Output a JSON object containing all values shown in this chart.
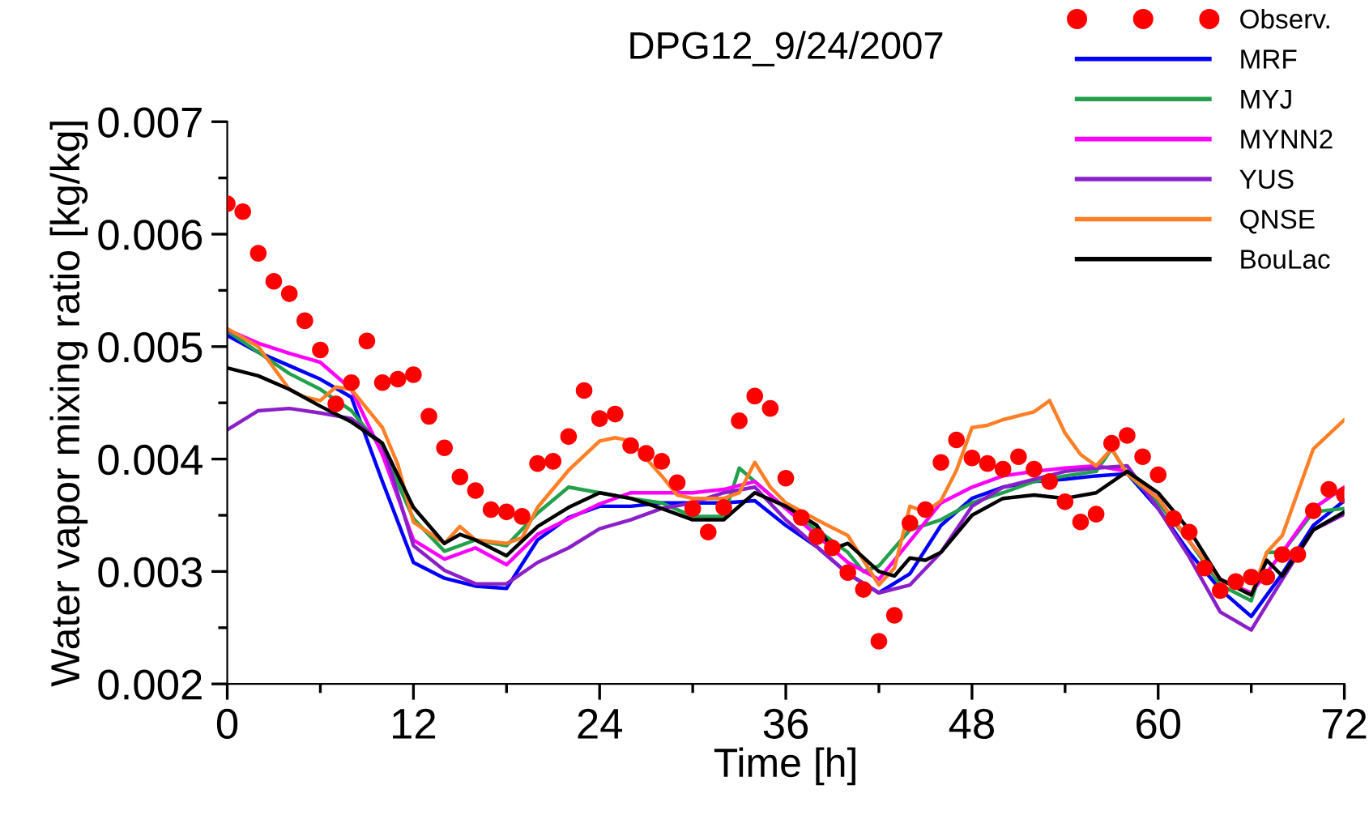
{
  "chart_data": {
    "type": "line",
    "title": "DPG12_9/24/2007",
    "xlabel": "Time [h]",
    "ylabel": "Water vapor mixing ratio [kg/kg]",
    "xlim": [
      0,
      72
    ],
    "ylim": [
      0.002,
      0.007
    ],
    "xticks": [
      0,
      {
        "value": 6,
        "label": null
      },
      12,
      {
        "value": 18,
        "label": null
      },
      24,
      {
        "value": 30,
        "label": null
      },
      36,
      {
        "value": 42,
        "label": null
      },
      48,
      {
        "value": 54,
        "label": null
      },
      60,
      {
        "value": 66,
        "label": null
      },
      72
    ],
    "yticks": [
      0.002,
      {
        "value": 0.0025,
        "label": null
      },
      0.003,
      {
        "value": 0.0035,
        "label": null
      },
      0.004,
      {
        "value": 0.0045,
        "label": null
      },
      0.005,
      {
        "value": 0.0055,
        "label": null
      },
      0.006,
      {
        "value": 0.0065,
        "label": null
      },
      0.007
    ],
    "grid": false,
    "legend": "top right",
    "line_style": "solid",
    "series": [
      {
        "name": "Observ.",
        "type": "scatter",
        "marker": "circle",
        "color": "#ff0000",
        "x": [
          0,
          1,
          2,
          3,
          4,
          5,
          6,
          7,
          8,
          9,
          10,
          11,
          12,
          13,
          14,
          15,
          16,
          17,
          18,
          19,
          20,
          21,
          22,
          23,
          24,
          25,
          26,
          27,
          28,
          29,
          30,
          31,
          32,
          33,
          34,
          35,
          36,
          37,
          38,
          39,
          40,
          41,
          42,
          43,
          44,
          45,
          46,
          47,
          48,
          49,
          50,
          51,
          52,
          53,
          54,
          55,
          56,
          57,
          58,
          59,
          60,
          61,
          62,
          63,
          64,
          65,
          66,
          67,
          68,
          69,
          70,
          71,
          72
        ],
        "values": [
          0.00627,
          0.0062,
          0.00583,
          0.00558,
          0.00547,
          0.00523,
          0.00497,
          0.00449,
          0.00468,
          0.00505,
          0.00468,
          0.00471,
          0.00475,
          0.00438,
          0.0041,
          0.00384,
          0.00372,
          0.00355,
          0.00353,
          0.00349,
          0.00396,
          0.00398,
          0.0042,
          0.00461,
          0.00436,
          0.0044,
          0.00412,
          0.00405,
          0.00398,
          0.00379,
          0.00356,
          0.00335,
          0.00357,
          0.00434,
          0.00456,
          0.00445,
          0.00383,
          0.00348,
          0.00331,
          0.00321,
          0.00299,
          0.00284,
          0.00238,
          0.00261,
          0.00343,
          0.00355,
          0.00397,
          0.00417,
          0.00401,
          0.00396,
          0.00391,
          0.00402,
          0.00391,
          0.0038,
          0.00362,
          0.00344,
          0.00351,
          0.00414,
          0.00421,
          0.00402,
          0.00386,
          0.00347,
          0.00335,
          0.00303,
          0.00283,
          0.00291,
          0.00295,
          0.00295,
          0.00315,
          0.00315,
          0.00354,
          0.00373,
          0.00368
        ]
      },
      {
        "name": "MRF",
        "color": "#0000ff",
        "x": [
          0,
          2,
          4,
          6,
          8,
          10,
          12,
          14,
          16,
          18,
          20,
          22,
          24,
          26,
          28,
          30,
          32,
          34,
          36,
          38,
          40,
          42,
          44,
          46,
          48,
          50,
          52,
          54,
          56,
          58,
          60,
          62,
          64,
          66,
          68,
          70,
          72
        ],
        "values": [
          0.0051,
          0.00495,
          0.00483,
          0.00471,
          0.00455,
          0.0038,
          0.00308,
          0.00294,
          0.00287,
          0.00285,
          0.00328,
          0.00348,
          0.00358,
          0.00358,
          0.00361,
          0.00361,
          0.00361,
          0.00363,
          0.00341,
          0.00322,
          0.00298,
          0.00281,
          0.00298,
          0.00341,
          0.00365,
          0.00375,
          0.0038,
          0.00382,
          0.00385,
          0.00387,
          0.00356,
          0.00317,
          0.00284,
          0.0026,
          0.00298,
          0.00341,
          0.00363
        ]
      },
      {
        "name": "MYJ",
        "color": "#22a04b",
        "x": [
          0,
          2,
          4,
          6,
          8,
          10,
          12,
          14,
          16,
          18,
          20,
          22,
          24,
          26,
          28,
          30,
          32,
          33,
          34,
          36,
          38,
          40,
          41,
          42,
          44,
          46,
          48,
          50,
          52,
          54,
          56,
          57,
          58,
          60,
          62,
          64,
          66,
          67,
          68,
          70,
          72
        ],
        "values": [
          0.00514,
          0.00495,
          0.00476,
          0.00462,
          0.00443,
          0.00409,
          0.00347,
          0.00318,
          0.00328,
          0.00323,
          0.00352,
          0.00375,
          0.0037,
          0.00365,
          0.00361,
          0.00349,
          0.00349,
          0.00392,
          0.0038,
          0.00356,
          0.00337,
          0.00317,
          0.003,
          0.00305,
          0.00337,
          0.00346,
          0.00361,
          0.0037,
          0.0038,
          0.00385,
          0.00389,
          0.00409,
          0.00387,
          0.00361,
          0.00327,
          0.00288,
          0.00274,
          0.00317,
          0.00317,
          0.00353,
          0.00356
        ]
      },
      {
        "name": "MYNN2",
        "color": "#ff00ff",
        "x": [
          0,
          2,
          4,
          6,
          8,
          10,
          12,
          14,
          16,
          18,
          20,
          22,
          24,
          26,
          28,
          30,
          32,
          34,
          36,
          38,
          40,
          42,
          44,
          46,
          48,
          50,
          52,
          54,
          56,
          58,
          60,
          62,
          64,
          66,
          68,
          70,
          72
        ],
        "values": [
          0.00515,
          0.00503,
          0.00494,
          0.00486,
          0.00462,
          0.00404,
          0.00328,
          0.00311,
          0.00321,
          0.00306,
          0.00333,
          0.00347,
          0.0036,
          0.0037,
          0.0037,
          0.0037,
          0.00373,
          0.0038,
          0.00356,
          0.00332,
          0.00308,
          0.00293,
          0.00327,
          0.00361,
          0.00375,
          0.00385,
          0.00389,
          0.00392,
          0.00394,
          0.00389,
          0.00365,
          0.00327,
          0.00293,
          0.00281,
          0.00317,
          0.00356,
          0.00375
        ]
      },
      {
        "name": "YUS",
        "color": "#8b1fc8",
        "x": [
          0,
          2,
          4,
          6,
          8,
          10,
          12,
          14,
          16,
          18,
          20,
          22,
          24,
          26,
          28,
          30,
          32,
          34,
          36,
          38,
          40,
          42,
          44,
          46,
          48,
          50,
          52,
          54,
          56,
          58,
          60,
          62,
          64,
          66,
          68,
          70,
          72
        ],
        "values": [
          0.00426,
          0.00443,
          0.00445,
          0.00441,
          0.00436,
          0.00414,
          0.00323,
          0.00301,
          0.00289,
          0.00289,
          0.00308,
          0.00321,
          0.00338,
          0.00346,
          0.00356,
          0.00361,
          0.0037,
          0.00375,
          0.00346,
          0.00322,
          0.00298,
          0.00281,
          0.00288,
          0.00317,
          0.00358,
          0.00375,
          0.00382,
          0.00389,
          0.00392,
          0.00394,
          0.00356,
          0.00313,
          0.00264,
          0.00248,
          0.00293,
          0.00337,
          0.00351
        ]
      },
      {
        "name": "QNSE",
        "color": "#ff7f27",
        "x": [
          0,
          2,
          4,
          5,
          6,
          7,
          8,
          10,
          11,
          12,
          14,
          15,
          16,
          18,
          19,
          20,
          22,
          24,
          25,
          26,
          28,
          29,
          30,
          32,
          33,
          34,
          35,
          36,
          38,
          40,
          42,
          43,
          44,
          45,
          46,
          47,
          48,
          49,
          50,
          52,
          53,
          54,
          55,
          56,
          57,
          58,
          60,
          62,
          64,
          66,
          67,
          68,
          70,
          72
        ],
        "values": [
          0.00516,
          0.005,
          0.00462,
          0.00455,
          0.00452,
          0.00464,
          0.00462,
          0.00428,
          0.00395,
          0.00344,
          0.00325,
          0.0034,
          0.00328,
          0.00325,
          0.0033,
          0.00357,
          0.0039,
          0.00416,
          0.00419,
          0.00416,
          0.00385,
          0.00368,
          0.00365,
          0.00365,
          0.0037,
          0.00397,
          0.00375,
          0.00361,
          0.00346,
          0.00332,
          0.00288,
          0.00303,
          0.00358,
          0.00353,
          0.00363,
          0.0039,
          0.00428,
          0.0043,
          0.00435,
          0.00442,
          0.00452,
          0.00423,
          0.00404,
          0.00394,
          0.00409,
          0.00387,
          0.00365,
          0.00327,
          0.00293,
          0.00279,
          0.00317,
          0.00332,
          0.00409,
          0.00435
        ]
      },
      {
        "name": "BouLac",
        "color": "#000000",
        "x": [
          0,
          2,
          4,
          6,
          8,
          10,
          12,
          14,
          15,
          16,
          18,
          20,
          22,
          24,
          26,
          28,
          30,
          32,
          34,
          36,
          38,
          39,
          40,
          42,
          43,
          44,
          45,
          46,
          48,
          50,
          52,
          54,
          56,
          58,
          60,
          62,
          64,
          66,
          67,
          68,
          70,
          72
        ],
        "values": [
          0.00481,
          0.00474,
          0.00462,
          0.00447,
          0.00433,
          0.00414,
          0.00357,
          0.00325,
          0.00333,
          0.00328,
          0.00314,
          0.0034,
          0.00357,
          0.0037,
          0.00365,
          0.00356,
          0.00346,
          0.00346,
          0.0037,
          0.00358,
          0.00341,
          0.0032,
          0.00325,
          0.003,
          0.00296,
          0.00312,
          0.0031,
          0.00317,
          0.0035,
          0.00365,
          0.00368,
          0.00365,
          0.0037,
          0.00389,
          0.0037,
          0.00337,
          0.00293,
          0.00279,
          0.0031,
          0.00296,
          0.00337,
          0.00353
        ]
      }
    ]
  }
}
